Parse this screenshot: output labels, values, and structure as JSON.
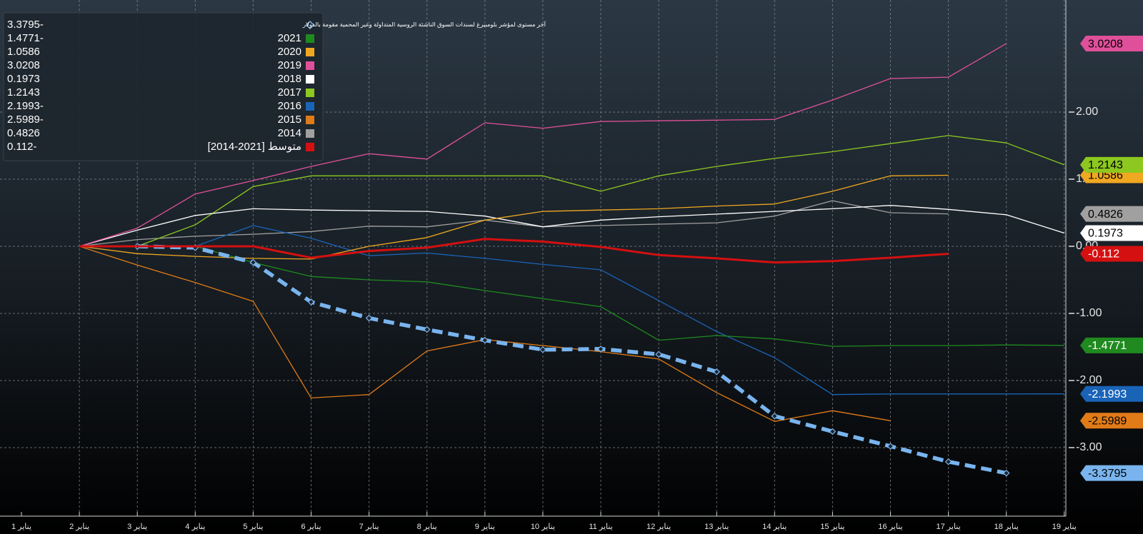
{
  "chart_data": {
    "type": "line",
    "categories": [
      "1 يناير",
      "2 يناير",
      "3 يناير",
      "4 يناير",
      "5 يناير",
      "6 يناير",
      "7 يناير",
      "8 يناير",
      "9 يناير",
      "10 يناير",
      "11 يناير",
      "12 يناير",
      "13 يناير",
      "14 يناير",
      "15 يناير",
      "16 يناير",
      "17 يناير",
      "18 يناير",
      "19 يناير"
    ],
    "ylim": [
      -4,
      3.6
    ],
    "yticks": [
      {
        "value": 2,
        "label": "2.00"
      },
      {
        "value": 1,
        "label": "1.00"
      },
      {
        "value": 0,
        "label": "0.00"
      },
      {
        "value": -1,
        "label": "-1.00"
      },
      {
        "value": -2,
        "label": "-2.00"
      },
      {
        "value": -3,
        "label": "-3.00"
      }
    ],
    "grid": true,
    "legend": "top-left",
    "series": [
      {
        "name": "آخر مستوى لمؤشر بلومبيرغ لسندات السوق الناشئة الروسية المتداولة وغير المحمية مقومة بالدولار",
        "color": "#79b4ee",
        "style": "dashed",
        "legend_value": "3.3795-",
        "values": [
          null,
          null,
          0,
          -0.02,
          -0.24,
          -0.83,
          -1.07,
          -1.24,
          -1.4,
          -1.54,
          -1.53,
          -1.61,
          -1.87,
          -2.53,
          -2.76,
          -2.98,
          -3.21,
          -3.3795,
          null
        ]
      },
      {
        "name": "2021",
        "color": "#1f8a1f",
        "legend_value": "1.4771-",
        "values": [
          null,
          0,
          0,
          0,
          -0.24,
          -0.45,
          -0.5,
          -0.53,
          -0.66,
          -0.78,
          -0.9,
          -1.4,
          -1.33,
          -1.38,
          -1.49,
          -1.48,
          -1.48,
          -1.47,
          -1.4771
        ]
      },
      {
        "name": "2020",
        "color": "#f0a820",
        "values": [
          null,
          0,
          -0.11,
          -0.15,
          -0.18,
          -0.19,
          0,
          0.13,
          0.39,
          0.52,
          0.54,
          0.56,
          0.6,
          0.63,
          0.82,
          1.05,
          1.0586,
          null,
          null
        ]
      },
      {
        "name": "2019",
        "color": "#e0509a",
        "values": [
          null,
          0,
          0.27,
          0.78,
          0.98,
          1.19,
          1.38,
          1.3,
          1.84,
          1.76,
          1.86,
          1.87,
          1.88,
          1.89,
          2.18,
          2.5,
          2.52,
          3.0208,
          null
        ]
      },
      {
        "name": "2018",
        "color": "#ffffff",
        "values": [
          null,
          0,
          0.24,
          0.46,
          0.56,
          0.54,
          0.53,
          0.52,
          0.45,
          0.29,
          0.39,
          0.44,
          0.48,
          0.52,
          0.56,
          0.61,
          0.55,
          0.47,
          0.1973
        ]
      },
      {
        "name": "2017",
        "color": "#8cc820",
        "values": [
          null,
          null,
          0,
          0.32,
          0.89,
          1.05,
          1.05,
          1.05,
          1.05,
          1.05,
          0.82,
          1.05,
          1.19,
          1.31,
          1.41,
          1.53,
          1.65,
          1.54,
          1.2143
        ]
      },
      {
        "name": "2016",
        "color": "#1a64b8",
        "legend_value": "2.1993-",
        "values": [
          null,
          0,
          0,
          0,
          0.31,
          0.12,
          -0.14,
          -0.1,
          -0.18,
          -0.27,
          -0.35,
          -0.81,
          -1.27,
          -1.66,
          -2.21,
          -2.2,
          -2.2,
          -2.2,
          -2.1993
        ]
      },
      {
        "name": "2015",
        "color": "#e07b18",
        "legend_value": "2.5989-",
        "values": [
          null,
          0,
          -0.28,
          -0.54,
          -0.82,
          -2.26,
          -2.21,
          -1.56,
          -1.39,
          -1.48,
          -1.57,
          -1.68,
          -2.18,
          -2.61,
          -2.45,
          -2.5989,
          null,
          null,
          null
        ]
      },
      {
        "name": "2014",
        "color": "#a0a0a0",
        "values": [
          null,
          0,
          0.1,
          0.15,
          0.18,
          0.22,
          0.3,
          0.29,
          0.39,
          0.29,
          0.31,
          0.33,
          0.35,
          0.45,
          0.68,
          0.5,
          0.4826,
          null,
          null
        ]
      },
      {
        "name": "متوسط [2021-2014]",
        "color": "#d41010",
        "width": 3,
        "legend_value": "0.112-",
        "values": [
          null,
          0,
          0,
          0,
          0,
          -0.17,
          -0.07,
          -0.02,
          0.11,
          0.07,
          -0.01,
          -0.13,
          -0.18,
          -0.24,
          -0.22,
          -0.17,
          -0.112,
          null,
          null
        ]
      }
    ]
  }
}
